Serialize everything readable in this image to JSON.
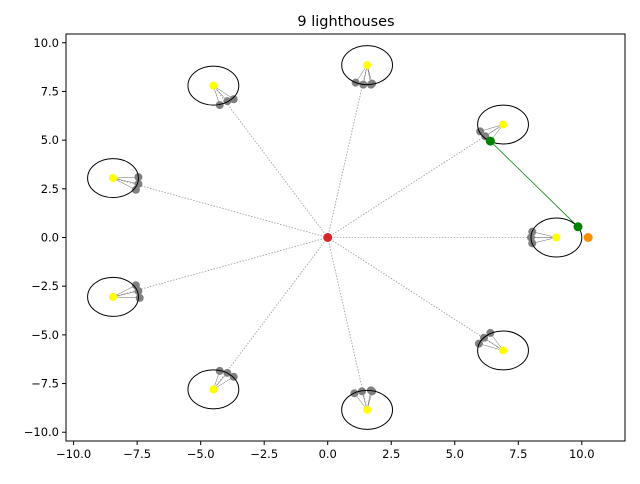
{
  "chart_data": {
    "type": "scatter",
    "title": "9 lighthouses",
    "xlabel": "",
    "ylabel": "",
    "xlim": [
      -10.3,
      11.7
    ],
    "ylim": [
      -10.45,
      10.45
    ],
    "xticks": [
      -10.0,
      -7.5,
      -5.0,
      -2.5,
      0.0,
      2.5,
      5.0,
      7.5,
      10.0
    ],
    "yticks": [
      -10.0,
      -7.5,
      -5.0,
      -2.5,
      0.0,
      2.5,
      5.0,
      7.5,
      10.0
    ],
    "xtick_labels": [
      "−10.0",
      "−7.5",
      "−5.0",
      "−2.5",
      "0.0",
      "2.5",
      "5.0",
      "7.5",
      "10.0"
    ],
    "ytick_labels": [
      "−10.0",
      "−7.5",
      "−5.0",
      "−2.5",
      "0.0",
      "2.5",
      "5.0",
      "7.5",
      "10.0"
    ],
    "grid": false,
    "origin": {
      "x": 0.0,
      "y": 0.0,
      "color": "#d62728"
    },
    "circle_radius": 1.0,
    "lighthouses": [
      {
        "x": 9.0,
        "y": 0.0,
        "anchors": [
          [
            8.05,
            -0.3
          ],
          [
            8.0,
            0.0
          ],
          [
            8.05,
            0.3
          ]
        ]
      },
      {
        "x": 6.9,
        "y": 5.8,
        "anchors": [
          [
            6.0,
            5.45
          ],
          [
            6.2,
            5.2
          ],
          [
            6.4,
            4.95
          ]
        ]
      },
      {
        "x": 1.55,
        "y": 8.85,
        "anchors": [
          [
            1.1,
            7.95
          ],
          [
            1.4,
            7.85
          ],
          [
            1.7,
            7.85
          ],
          [
            1.75,
            7.9
          ]
        ]
      },
      {
        "x": -4.5,
        "y": 7.8,
        "anchors": [
          [
            -4.25,
            6.8
          ],
          [
            -3.95,
            7.0
          ],
          [
            -3.7,
            7.1
          ]
        ]
      },
      {
        "x": -8.45,
        "y": 3.05,
        "anchors": [
          [
            -7.55,
            2.45
          ],
          [
            -7.45,
            2.75
          ],
          [
            -7.45,
            3.1
          ]
        ]
      },
      {
        "x": -8.45,
        "y": -3.05,
        "anchors": [
          [
            -7.55,
            -2.45
          ],
          [
            -7.45,
            -2.75
          ],
          [
            -7.4,
            -3.1
          ]
        ]
      },
      {
        "x": -4.5,
        "y": -7.8,
        "anchors": [
          [
            -4.25,
            -6.85
          ],
          [
            -3.95,
            -6.95
          ],
          [
            -3.7,
            -7.15
          ]
        ]
      },
      {
        "x": 1.55,
        "y": -8.85,
        "anchors": [
          [
            1.05,
            -8.0
          ],
          [
            1.35,
            -7.9
          ],
          [
            1.7,
            -7.85
          ],
          [
            1.75,
            -7.9
          ]
        ]
      },
      {
        "x": 6.9,
        "y": -5.8,
        "anchors": [
          [
            5.95,
            -5.45
          ],
          [
            6.15,
            -5.15
          ],
          [
            6.4,
            -4.9
          ]
        ]
      }
    ],
    "target": {
      "x": 10.25,
      "y": 0.0,
      "color": "#ff8c00"
    },
    "path": {
      "points": [
        [
          6.4,
          4.95
        ],
        [
          9.85,
          0.55
        ]
      ],
      "color": "#008000"
    },
    "colors": {
      "lighthouse": "#ffff00",
      "anchor": "#808080",
      "connector": "#999999",
      "circle": "#000000"
    }
  }
}
